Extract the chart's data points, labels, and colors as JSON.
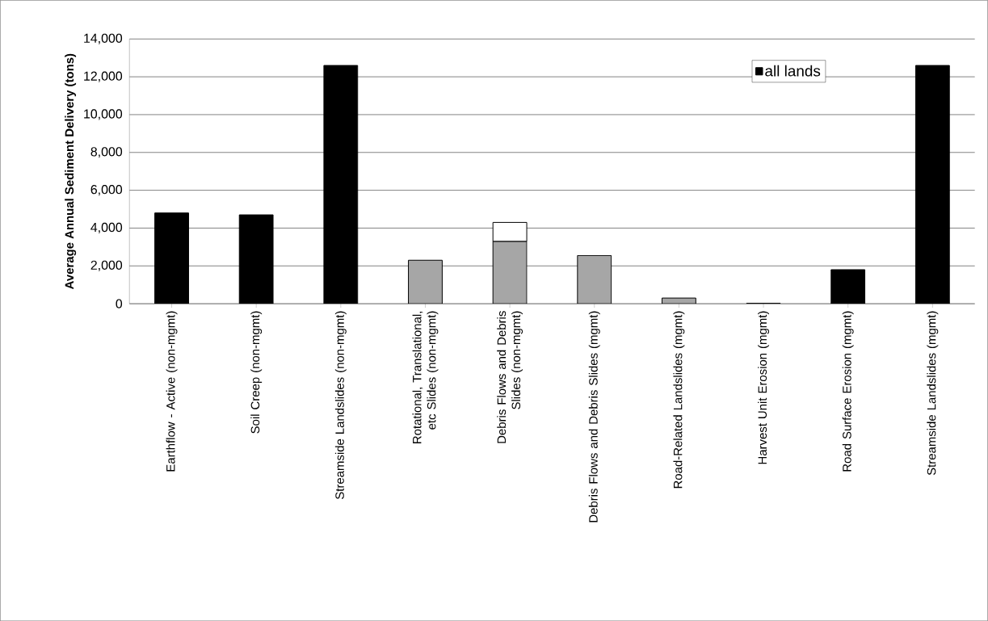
{
  "chart_data": {
    "type": "bar",
    "stacked": true,
    "ylabel": "Average Annual Sediment Delivery (tons)",
    "categories": [
      "Earthflow - Active (non-mgmt)",
      "Soil Creep (non-mgmt)",
      "Streamside Landslides (non-mgmt)",
      "Rotational, Translational, etc Slides (non-mgmt)",
      "Debris Flows and Debris Slides (non-mgmt)",
      "Debris Flows and Debris Slides (mgmt)",
      "Road-Related Landslides (mgmt)",
      "Harvest Unit Erosion (mgmt)",
      "Road Surface Erosion (mgmt)",
      "Streamside Landslides (mgmt)"
    ],
    "series": [
      {
        "color": "#a6a6a6",
        "values": [
          null,
          null,
          null,
          2300,
          3300,
          2550,
          300,
          30,
          null,
          null
        ]
      },
      {
        "color": "#ffffff",
        "values": [
          null,
          null,
          null,
          null,
          1000,
          null,
          null,
          null,
          null,
          null
        ]
      },
      {
        "name": "all lands",
        "color": "#000000",
        "values": [
          4800,
          4700,
          12600,
          null,
          null,
          null,
          null,
          null,
          1800,
          12600
        ]
      }
    ],
    "ylim": [
      0,
      14000
    ],
    "yticks": [
      0,
      {
        "value": 2000,
        "label": "2,000"
      },
      {
        "value": 4000,
        "label": "4,000"
      },
      {
        "value": 6000,
        "label": "6,000"
      },
      {
        "value": 8000,
        "label": "8,000"
      },
      {
        "value": 10000,
        "label": "10,000"
      },
      {
        "value": 12000,
        "label": "12,000"
      },
      {
        "value": 14000,
        "label": "14,000"
      }
    ],
    "grid": "y",
    "legend": "top right"
  }
}
